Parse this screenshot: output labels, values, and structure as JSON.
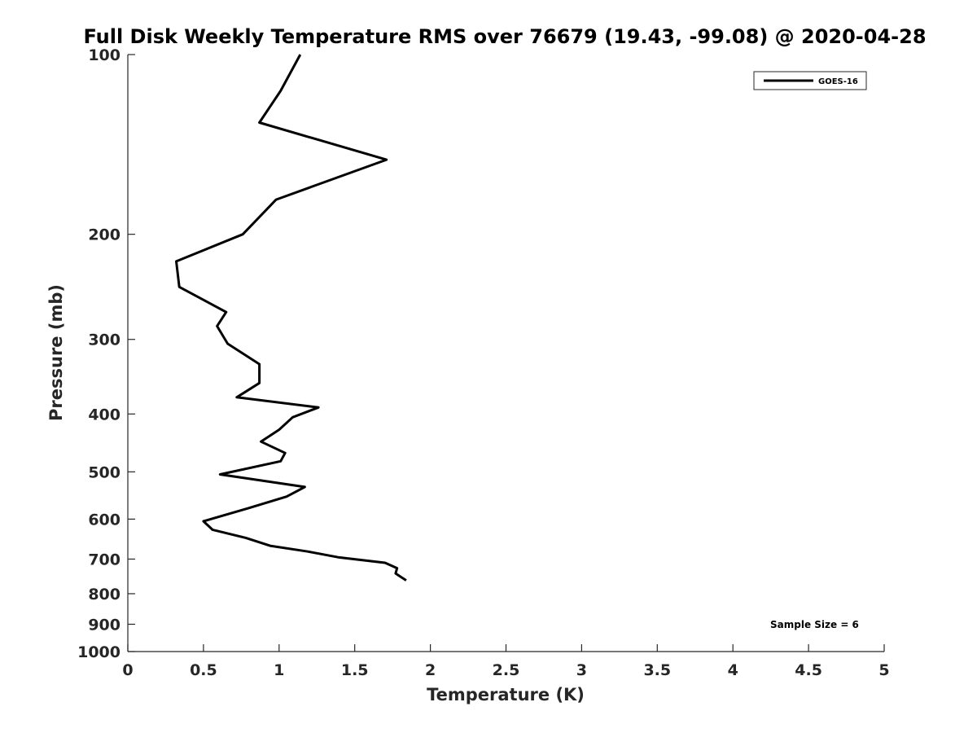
{
  "chart_data": {
    "type": "line",
    "title": "Full Disk Weekly Temperature RMS over 76679 (19.43, -99.08) @ 2020-04-28",
    "xlabel": "Temperature (K)",
    "ylabel": "Pressure (mb)",
    "xlim": [
      0,
      5
    ],
    "ylim": [
      100,
      1000
    ],
    "y_scale": "log",
    "y_reversed": true,
    "xticks": [
      "0",
      "0.5",
      "1",
      "1.5",
      "2",
      "2.5",
      "3",
      "3.5",
      "4",
      "4.5",
      "5"
    ],
    "yticks": [
      "100",
      "200",
      "300",
      "400",
      "500",
      "600",
      "700",
      "800",
      "900",
      "1000"
    ],
    "legend_position": "top-right",
    "grid": false,
    "series": [
      {
        "name": "GOES-16",
        "color": "#000000",
        "x": [
          1.14,
          1.01,
          0.87,
          1.71,
          0.98,
          0.76,
          0.32,
          0.34,
          0.65,
          0.59,
          0.66,
          0.87,
          0.87,
          0.72,
          1.26,
          1.09,
          1.0,
          0.88,
          1.04,
          1.01,
          0.61,
          1.17,
          1.05,
          0.8,
          0.5,
          0.56,
          0.78,
          0.94,
          1.19,
          1.39,
          1.7,
          1.78,
          1.77,
          1.84
        ],
        "y": [
          100,
          115,
          130,
          150,
          175,
          200,
          222,
          245,
          270,
          285,
          305,
          330,
          355,
          375,
          390,
          405,
          425,
          445,
          465,
          480,
          505,
          530,
          550,
          575,
          605,
          625,
          645,
          665,
          680,
          695,
          710,
          725,
          740,
          760
        ]
      }
    ],
    "annotations": [
      "Sample Size = 6"
    ]
  }
}
